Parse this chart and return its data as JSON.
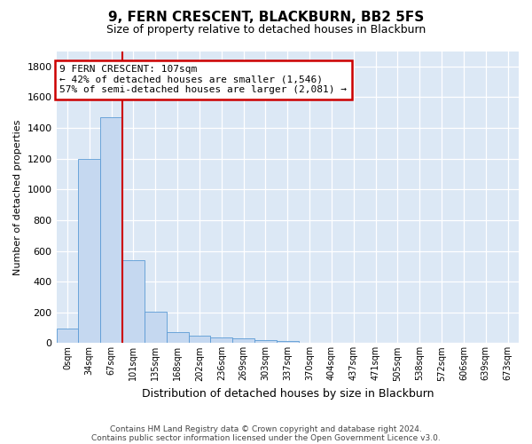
{
  "title": "9, FERN CRESCENT, BLACKBURN, BB2 5FS",
  "subtitle": "Size of property relative to detached houses in Blackburn",
  "xlabel": "Distribution of detached houses by size in Blackburn",
  "ylabel": "Number of detached properties",
  "bin_labels": [
    "0sqm",
    "34sqm",
    "67sqm",
    "101sqm",
    "135sqm",
    "168sqm",
    "202sqm",
    "236sqm",
    "269sqm",
    "303sqm",
    "337sqm",
    "370sqm",
    "404sqm",
    "437sqm",
    "471sqm",
    "505sqm",
    "538sqm",
    "572sqm",
    "606sqm",
    "639sqm",
    "673sqm"
  ],
  "bar_heights": [
    95,
    1200,
    1470,
    540,
    205,
    70,
    48,
    38,
    30,
    20,
    15,
    0,
    0,
    0,
    0,
    0,
    0,
    0,
    0,
    0,
    0
  ],
  "bar_color": "#c5d8f0",
  "bar_edge_color": "#5b9bd5",
  "marker_line_bin": 3,
  "annotation_box_text": "9 FERN CRESCENT: 107sqm\n← 42% of detached houses are smaller (1,546)\n57% of semi-detached houses are larger (2,081) →",
  "annotation_box_color": "#ffffff",
  "annotation_box_edge_color": "#cc0000",
  "ylim": [
    0,
    1900
  ],
  "yticks": [
    0,
    200,
    400,
    600,
    800,
    1000,
    1200,
    1400,
    1600,
    1800
  ],
  "footer_line1": "Contains HM Land Registry data © Crown copyright and database right 2024.",
  "footer_line2": "Contains public sector information licensed under the Open Government Licence v3.0.",
  "bg_color": "#ffffff",
  "plot_bg_color": "#dce8f5"
}
